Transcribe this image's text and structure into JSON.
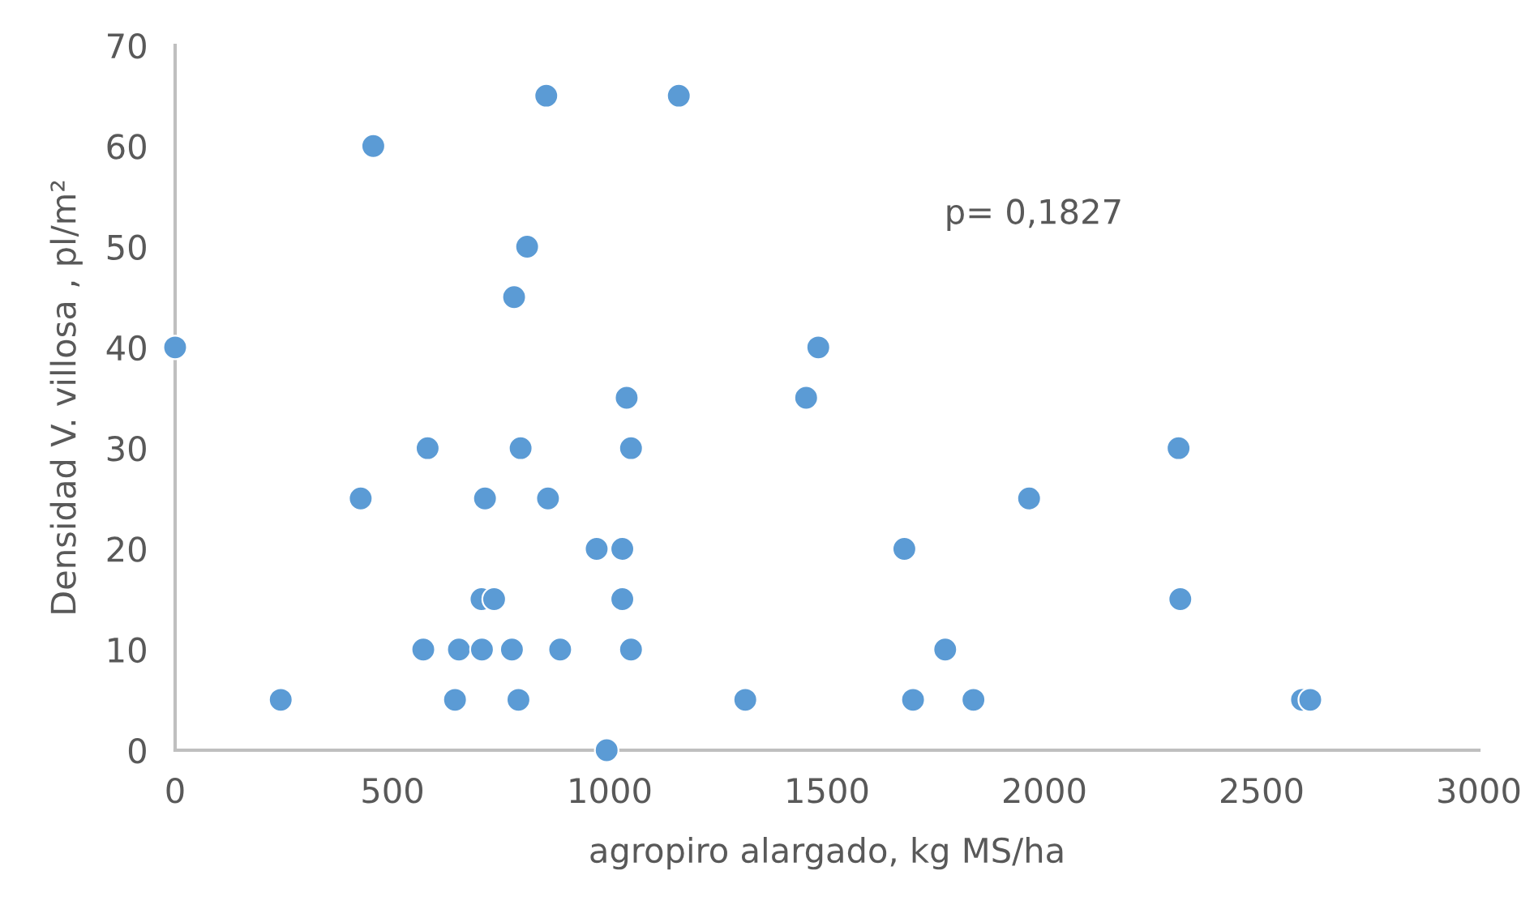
{
  "chart_data": {
    "type": "scatter",
    "xlabel": "agropiro alargado, kg MS/ha",
    "ylabel": "Densidad V. villosa , pl/m²",
    "annotations": [
      "p= 0,1827"
    ],
    "series": [
      {
        "color": "#5b9bd5",
        "x": [
          0,
          243,
          456,
          427,
          581,
          571,
          644,
          653,
          705,
          706,
          713,
          734,
          775,
          780,
          790,
          795,
          810,
          854,
          858,
          886,
          970,
          993,
          1029,
          1029,
          1039,
          1049,
          1049,
          1159,
          1312,
          1452,
          1480,
          1678,
          1698,
          1772,
          1837,
          1965,
          2309,
          2313,
          2593,
          2612
        ],
        "values": [
          40,
          5,
          60,
          25,
          30,
          10,
          5,
          10,
          15,
          10,
          25,
          15,
          10,
          45,
          5,
          30,
          50,
          65,
          25,
          10,
          20,
          0,
          20,
          15,
          35,
          30,
          10,
          65,
          5,
          35,
          40,
          20,
          5,
          10,
          5,
          25,
          30,
          15,
          5,
          5
        ]
      }
    ],
    "marker": "circle",
    "xlim": [
      0,
      3000
    ],
    "ylim": [
      0,
      70
    ],
    "xticks": [
      0,
      500,
      1000,
      1500,
      2000,
      2500,
      3000
    ],
    "yticks": [
      0,
      10,
      20,
      30,
      40,
      50,
      60,
      70
    ],
    "grid": false,
    "legend": false
  }
}
